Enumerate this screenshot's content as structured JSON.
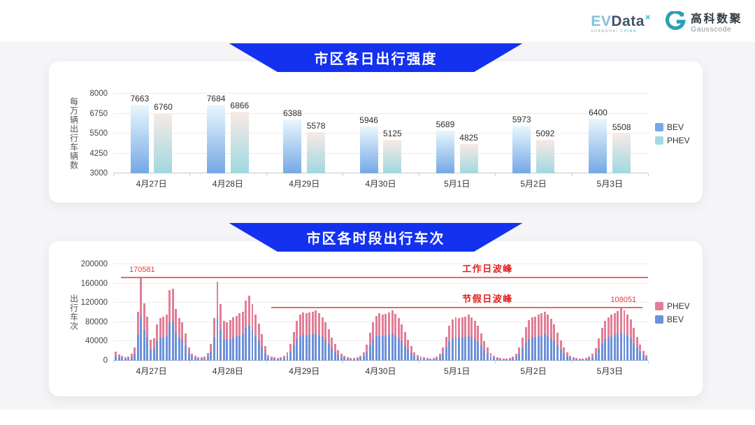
{
  "header": {
    "evdata": {
      "ev": "EV",
      "data": "Data",
      "sup": "×",
      "sub1": "SHANGHAI ",
      "sub2": "CHINA"
    },
    "gausscode": {
      "cn": "高科数聚",
      "en": "Gausscode"
    }
  },
  "colors": {
    "banner": "#1331ef",
    "bev_gradient_top": "#e9f7fd",
    "bev_gradient_bottom": "#74a8e6",
    "phev_gradient_top": "#f8eae6",
    "phev_gradient_bottom": "#a0d8e0",
    "bev_stack": "#6c90d9",
    "phev_stack": "#e17e96",
    "peak_line": "#e46a6a",
    "peak_text": "#e21f1f"
  },
  "chart_data": [
    {
      "type": "bar",
      "title": "市区各日出行强度",
      "ylabel": "每万辆出行车辆数",
      "ylim": [
        3000,
        8000
      ],
      "yticks": [
        8000,
        6750,
        5500,
        4250,
        3000
      ],
      "categories": [
        "4月27日",
        "4月28日",
        "4月29日",
        "4月30日",
        "5月1日",
        "5月2日",
        "5月3日"
      ],
      "series": [
        {
          "name": "BEV",
          "values": [
            7663,
            7684,
            6388,
            5946,
            5689,
            5973,
            6400
          ]
        },
        {
          "name": "PHEV",
          "values": [
            6760,
            6866,
            5578,
            5125,
            4825,
            5092,
            5508
          ]
        }
      ],
      "legend": [
        {
          "label": "BEV",
          "color": "#74a9e6"
        },
        {
          "label": "PHEV",
          "color": "#a5dae3"
        }
      ],
      "grid": true,
      "legend_position": "right"
    },
    {
      "type": "stacked-bar",
      "title": "市区各时段出行车次",
      "ylabel": "出行车次",
      "ylim": [
        0,
        200000
      ],
      "yticks": [
        200000,
        160000,
        120000,
        80000,
        40000,
        0
      ],
      "hours_per_day": 24,
      "legend": [
        {
          "label": "PHEV",
          "color": "#e17e96"
        },
        {
          "label": "BEV",
          "color": "#6c90d9"
        }
      ],
      "legend_position": "right",
      "grid": true,
      "annotations": [
        {
          "id": "workday",
          "label": "工作日波峰",
          "value": 170581,
          "value_text": "170581",
          "line_start_pct": 1.5,
          "line_end_pct": 100,
          "label_x_pct": 70,
          "value_x_pct": 3
        },
        {
          "id": "holiday",
          "label": "节假日波峰",
          "value": 108051,
          "value_text": "108051",
          "line_start_pct": 29.5,
          "line_end_pct": 99,
          "label_x_pct": 70,
          "value_x_pct": 93
        }
      ],
      "days": [
        {
          "date": "4月27日",
          "bev": [
            10300,
            7000,
            5400,
            4300,
            4900,
            7600,
            15100,
            54500,
            91000,
            64300,
            49100,
            23200,
            24800,
            41000,
            47500,
            49100,
            51300,
            78800,
            80500,
            58300,
            48100,
            43200,
            30800,
            14600
          ],
          "phev": [
            8700,
            6000,
            4600,
            3700,
            4100,
            6400,
            12900,
            46500,
            79581,
            54700,
            41900,
            19800,
            21200,
            35000,
            40500,
            41900,
            43700,
            67200,
            68500,
            49700,
            40900,
            36800,
            26200,
            12400
          ]
        },
        {
          "date": "4月28日",
          "bev": [
            8100,
            5400,
            4300,
            3800,
            4900,
            8600,
            18900,
            47500,
            88600,
            63700,
            44800,
            43200,
            45400,
            48600,
            50200,
            52900,
            55100,
            67500,
            72900,
            63700,
            51300,
            41600,
            29700,
            16200
          ],
          "phev": [
            6900,
            4600,
            3700,
            3200,
            4100,
            7400,
            16100,
            40500,
            75400,
            54300,
            38200,
            36800,
            38600,
            41400,
            42800,
            45100,
            46900,
            57500,
            62100,
            54300,
            43700,
            35400,
            25300,
            13800
          ]
        },
        {
          "date": "4月29日",
          "bev": [
            6500,
            4900,
            3800,
            3200,
            3800,
            5400,
            9700,
            18900,
            32400,
            44300,
            51300,
            54000,
            52900,
            54000,
            55100,
            56700,
            52900,
            48600,
            43200,
            35100,
            25900,
            18900,
            11900,
            7600
          ],
          "phev": [
            5500,
            4100,
            3200,
            2800,
            3200,
            4600,
            8300,
            16100,
            27600,
            37700,
            43700,
            46000,
            45100,
            46000,
            46900,
            48300,
            45100,
            41400,
            36800,
            29900,
            22100,
            16100,
            10100,
            6400
          ]
        },
        {
          "date": "4月30日",
          "bev": [
            5400,
            4300,
            3200,
            3200,
            3800,
            5400,
            9200,
            17800,
            31300,
            43200,
            50200,
            52900,
            51800,
            52400,
            54000,
            56200,
            52400,
            47500,
            41000,
            32400,
            23800,
            16200,
            9700,
            6500
          ],
          "phev": [
            4600,
            3700,
            2800,
            2800,
            3200,
            4600,
            7800,
            15200,
            26700,
            36800,
            42800,
            45100,
            44200,
            44600,
            46000,
            47800,
            44600,
            40500,
            35000,
            27600,
            20200,
            13800,
            8300,
            5500
          ]
        },
        {
          "date": "5月1日",
          "bev": [
            4900,
            3800,
            3200,
            2700,
            3200,
            4900,
            8100,
            15100,
            27000,
            38900,
            45900,
            48600,
            47500,
            48600,
            49700,
            51300,
            48600,
            44800,
            38900,
            30200,
            21600,
            14600,
            8600,
            5400
          ],
          "phev": [
            4100,
            3200,
            2800,
            2300,
            2800,
            4100,
            6900,
            12900,
            23000,
            33100,
            39100,
            41400,
            40500,
            41400,
            42300,
            43700,
            41400,
            38200,
            33100,
            25800,
            18400,
            12400,
            7400,
            4600
          ]
        },
        {
          "date": "5月2日",
          "bev": [
            4300,
            3200,
            2700,
            2700,
            3200,
            4900,
            7600,
            14600,
            25900,
            37800,
            45400,
            48600,
            49700,
            51300,
            52900,
            54500,
            51300,
            47000,
            40500,
            31300,
            22700,
            15100,
            9200,
            5400
          ],
          "phev": [
            3700,
            2800,
            2300,
            2300,
            2800,
            4100,
            6400,
            12400,
            22100,
            32200,
            38600,
            41400,
            42300,
            43700,
            45100,
            46500,
            43700,
            40000,
            34500,
            26700,
            19300,
            12900,
            7800,
            4600
          ]
        },
        {
          "date": "5月3日",
          "bev": [
            4300,
            3200,
            2700,
            2700,
            3200,
            4900,
            7600,
            14000,
            24800,
            36700,
            44300,
            48600,
            51300,
            53500,
            55600,
            58300,
            56200,
            51800,
            45900,
            36700,
            27000,
            18400,
            10800,
            6500
          ],
          "phev": [
            3700,
            2800,
            2300,
            2300,
            2800,
            4100,
            6400,
            12000,
            21200,
            31300,
            37700,
            41400,
            43700,
            45500,
            47400,
            49751,
            47800,
            44200,
            39100,
            31300,
            23000,
            15600,
            9200,
            5500
          ]
        }
      ]
    }
  ]
}
